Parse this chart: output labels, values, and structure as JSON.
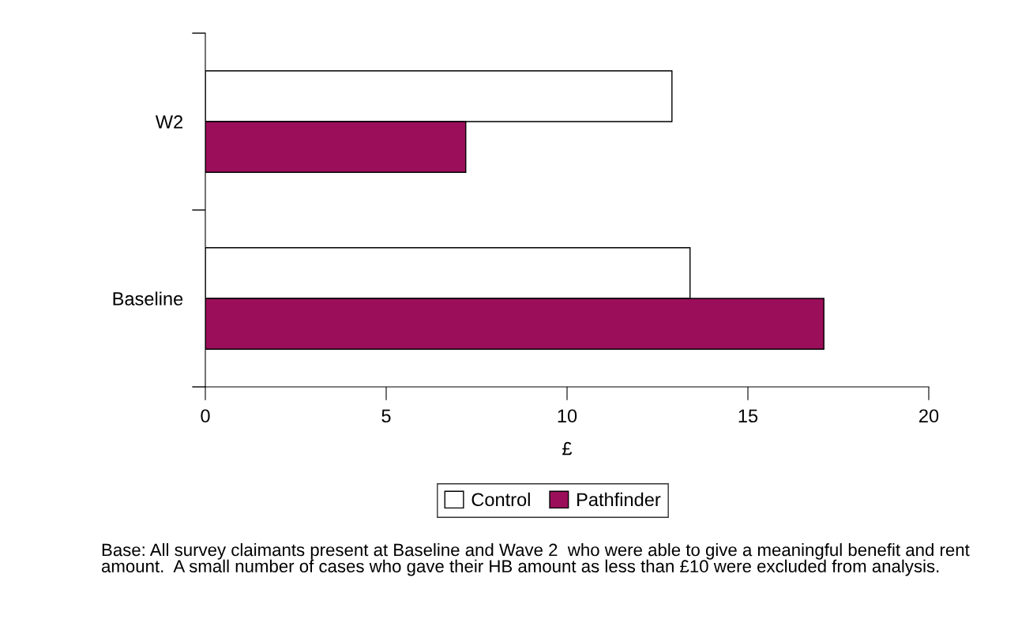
{
  "chart_data": {
    "type": "bar",
    "orientation": "horizontal",
    "categories": [
      "W2",
      "Baseline"
    ],
    "series": [
      {
        "name": "Control",
        "color": "#ffffff",
        "values": [
          12.9,
          13.4
        ]
      },
      {
        "name": "Pathfinder",
        "color": "#9b0f5a",
        "values": [
          7.2,
          17.1
        ]
      }
    ],
    "xlabel": "£",
    "xlim": [
      0,
      20
    ],
    "xticks": [
      0,
      5,
      10,
      15,
      20
    ],
    "grid": false,
    "legend": "bottom",
    "annotations": [
      "Base: All survey claimants present at Baseline and Wave 2  who were able to give a meaningful benefit and rent amount.  A small number of cases who gave their HB amount as less than £10 were excluded from analysis."
    ]
  }
}
